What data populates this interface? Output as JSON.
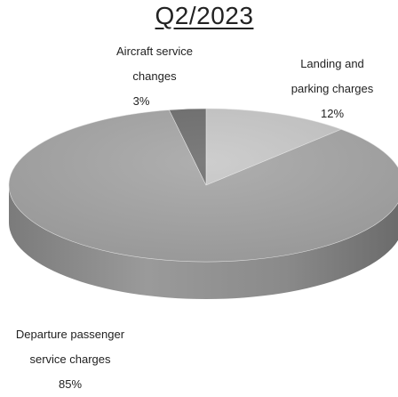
{
  "chart_data": {
    "type": "pie",
    "title": "Q2/2023",
    "slices": [
      {
        "name": "Landing and parking charges",
        "value": 12,
        "label": "12%",
        "color": "#c8c8c8"
      },
      {
        "name": "Departure passenger service charges",
        "value": 85,
        "label": "85%",
        "color": "#a6a6a6"
      },
      {
        "name": "Aircraft service changes",
        "value": 3,
        "label": "3%",
        "color": "#6e6e6e"
      }
    ],
    "labels": {
      "landing": {
        "line1": "Landing and",
        "line2": "parking charges",
        "pct": "12%"
      },
      "aircraft": {
        "line1": "Aircraft service",
        "line2": "changes",
        "pct": "3%"
      },
      "departure": {
        "line1": "Departure passenger",
        "line2": "service charges",
        "pct": "85%"
      }
    },
    "style": "3d"
  }
}
